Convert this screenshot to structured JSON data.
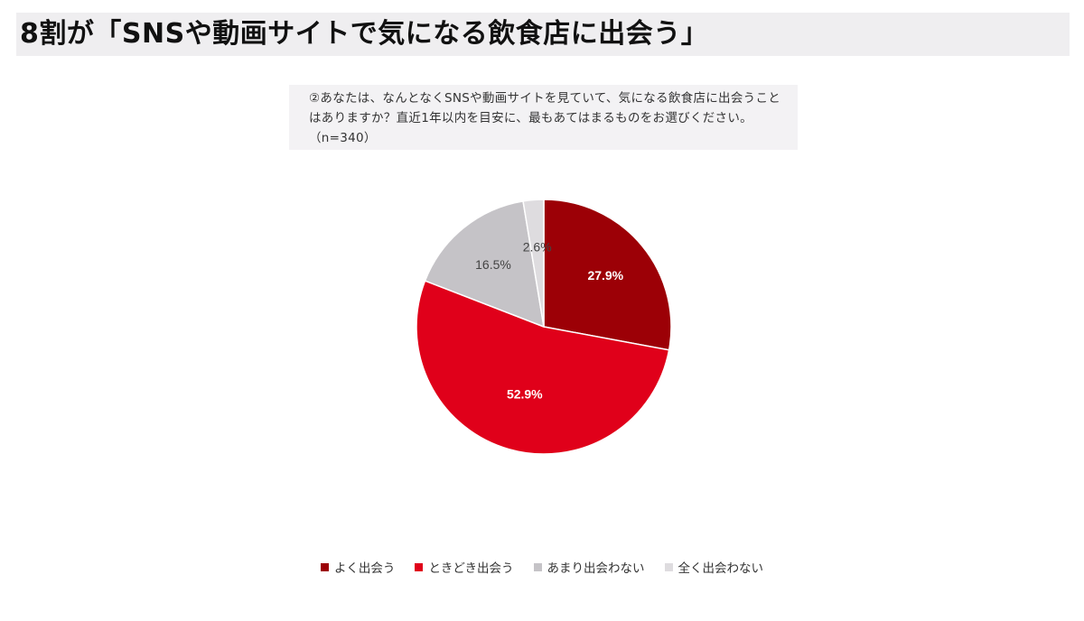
{
  "header": {
    "title": "8割が「SNSや動画サイトで気になる飲食店に出会う」"
  },
  "question": {
    "text": "②あなたは、なんとなくSNSや動画サイトを見ていて、気になる飲食店に出会うことはありますか？直近1年以内を目安に、最もあてはまるものをお選びください。（n=340）"
  },
  "chart_data": {
    "type": "pie",
    "title": "",
    "start_angle_deg": 0,
    "direction": "clockwise",
    "slices": [
      {
        "name": "よく出会う",
        "value": 27.9,
        "label": "27.9%",
        "color": "#9c0006",
        "label_color": "#ffffff",
        "label_weight": "bold"
      },
      {
        "name": "ときどき出会う",
        "value": 52.9,
        "label": "52.9%",
        "color": "#e0001a",
        "label_color": "#ffffff",
        "label_weight": "bold"
      },
      {
        "name": "あまり出会わない",
        "value": 16.5,
        "label": "16.5%",
        "color": "#c5c3c7",
        "label_color": "#444444",
        "label_weight": "normal"
      },
      {
        "name": "全く出会わない",
        "value": 2.6,
        "label": "2.6%",
        "color": "#dedcdf",
        "label_color": "#444444",
        "label_weight": "normal"
      }
    ],
    "legend_position": "bottom"
  }
}
